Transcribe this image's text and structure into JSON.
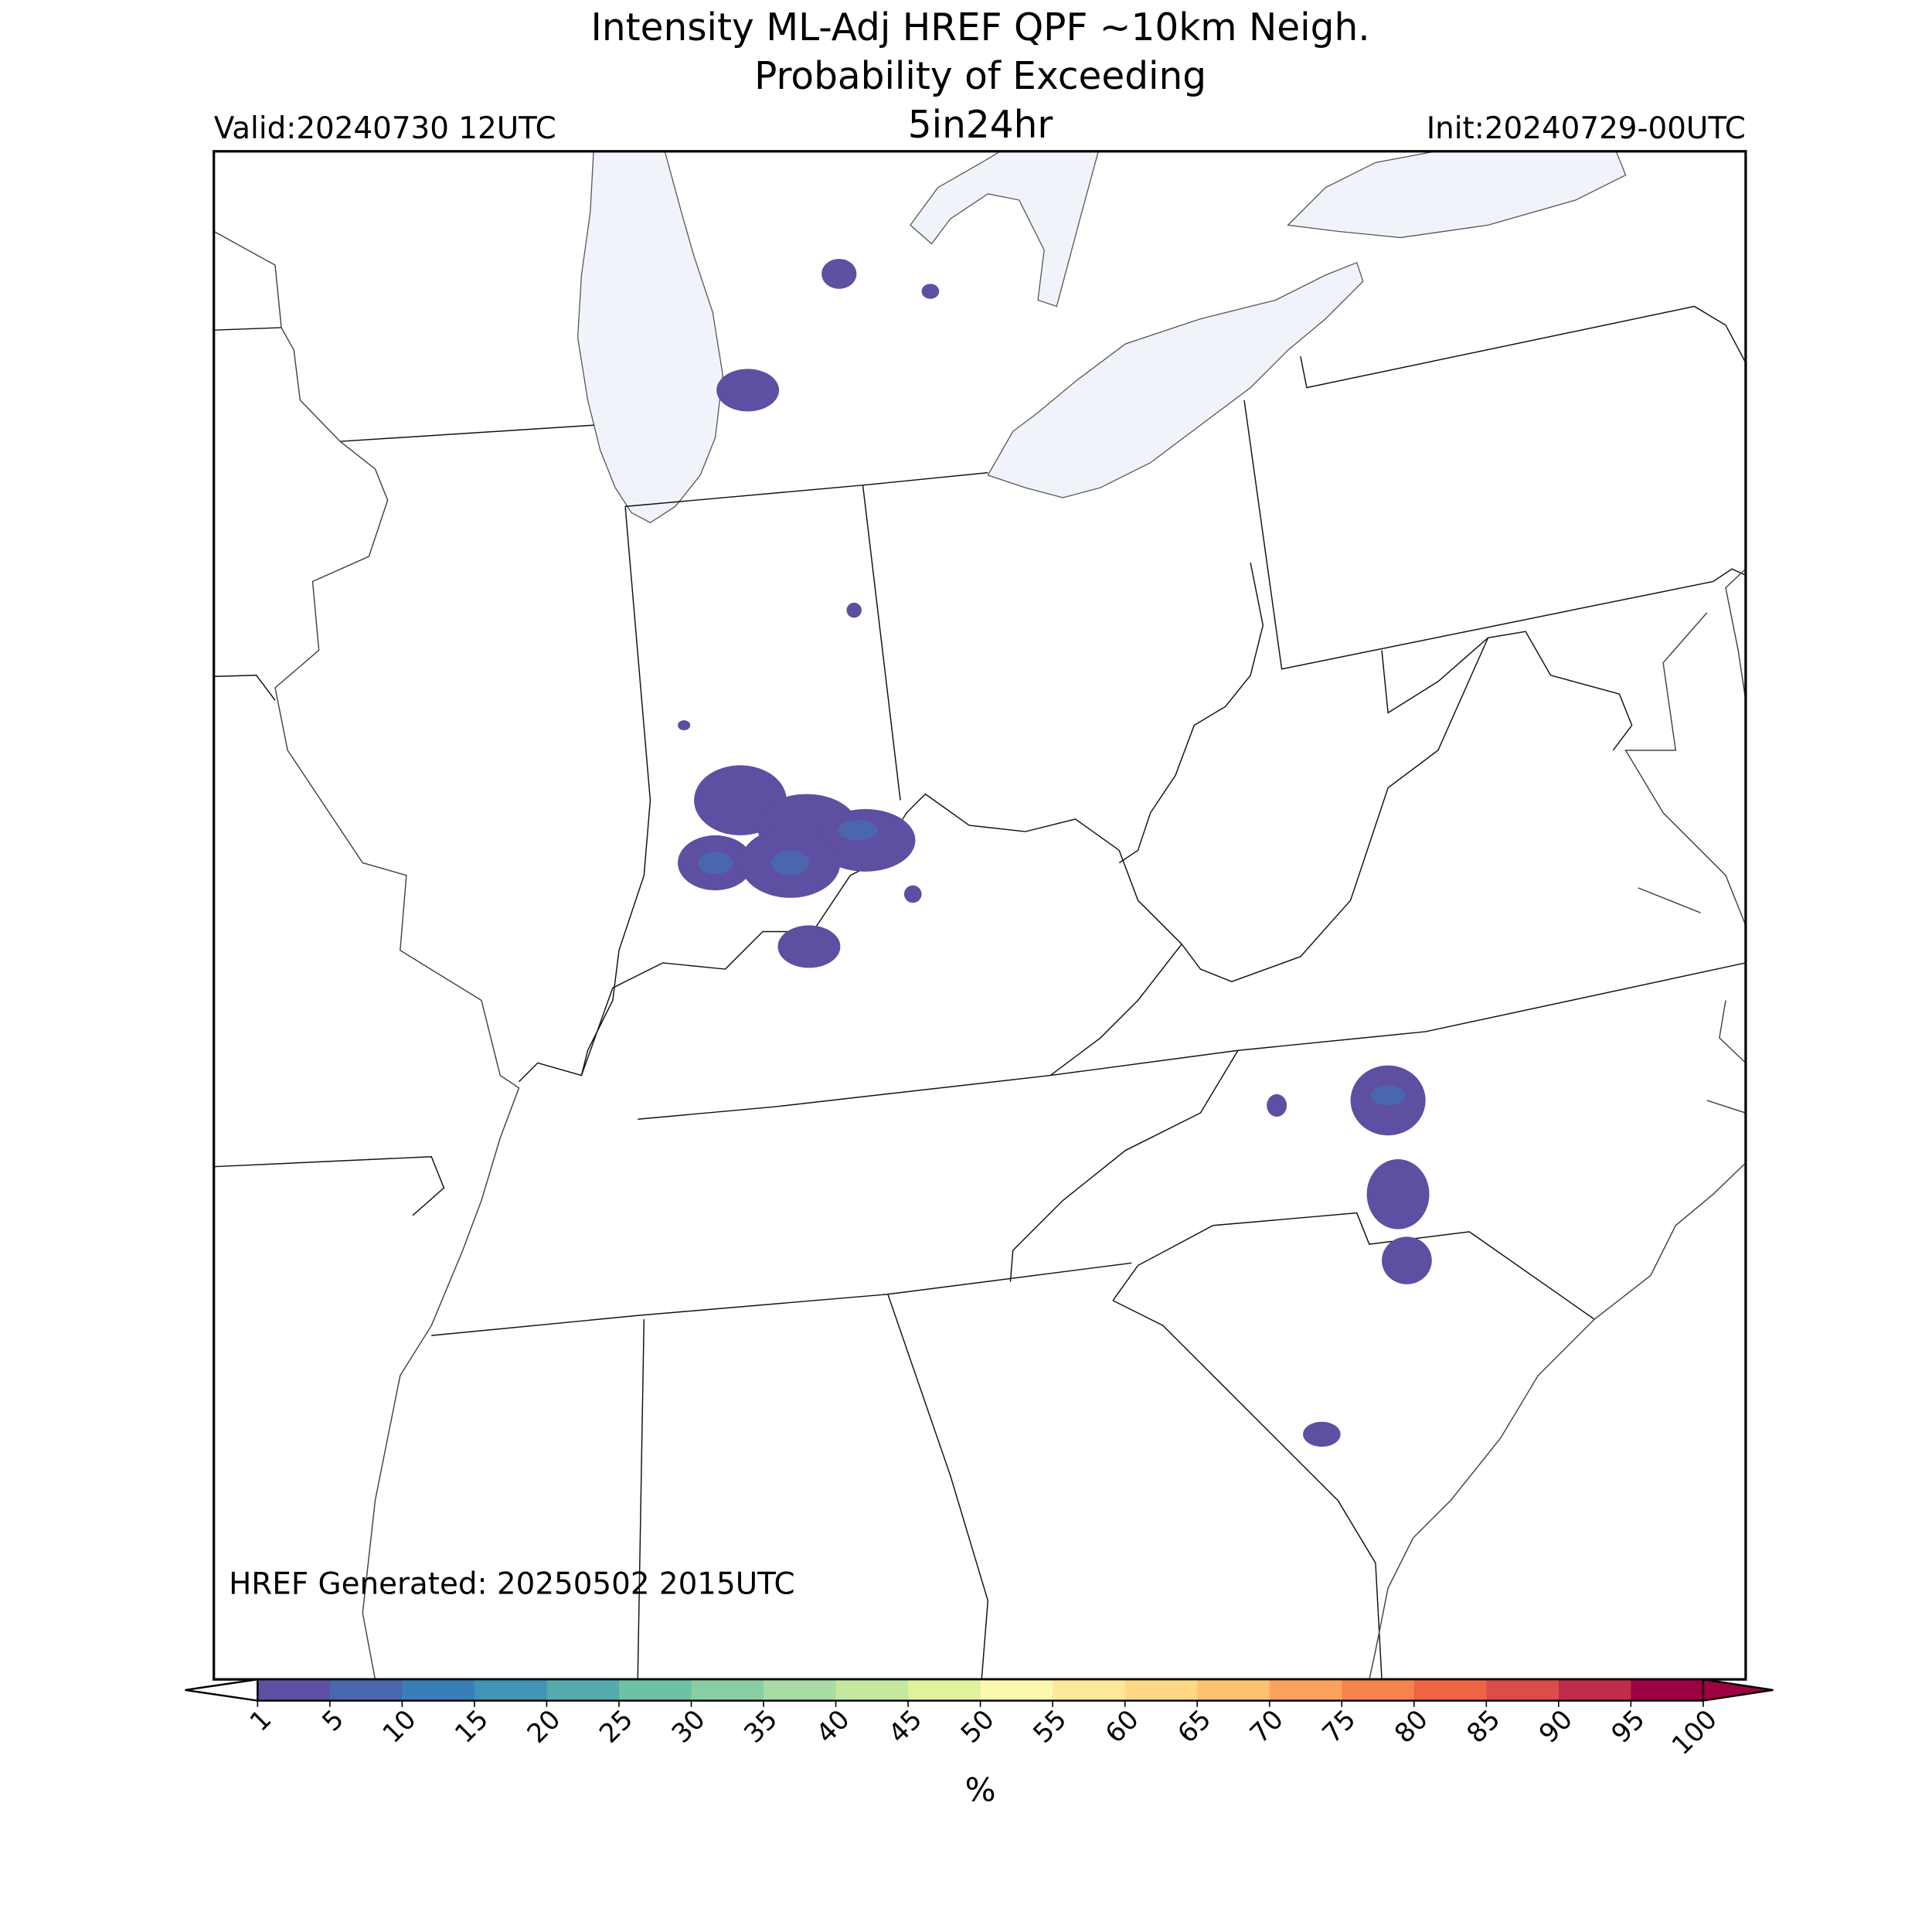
{
  "header": {
    "title_lines": [
      "Intensity ML-Adj HREF QPF ~10km Neigh.",
      "Probability of Exceeding",
      "5in24hr"
    ],
    "valid": "Valid:20240730 12UTC",
    "init": "Init:20240729-00UTC"
  },
  "map": {
    "footnote": "HREF Generated: 20250502 2015UTC"
  },
  "colorbar": {
    "label": "%",
    "ticks": [
      1,
      5,
      10,
      15,
      20,
      25,
      30,
      35,
      40,
      45,
      50,
      55,
      60,
      65,
      70,
      75,
      80,
      85,
      90,
      95,
      100
    ],
    "colors": [
      "#5e4fa2",
      "#4a66ad",
      "#3a7eb8",
      "#4095b5",
      "#55aaad",
      "#6fc1a4",
      "#8acea4",
      "#a8dca3",
      "#c5e8a1",
      "#e0f29d",
      "#fbf8b0",
      "#fee89b",
      "#fed884",
      "#fdc370",
      "#fca25f",
      "#f7844e",
      "#ee6445",
      "#de4b4b",
      "#c22b4c",
      "#9e0142"
    ],
    "under_color": "#ffffff",
    "over_color": "#9e0142"
  }
}
